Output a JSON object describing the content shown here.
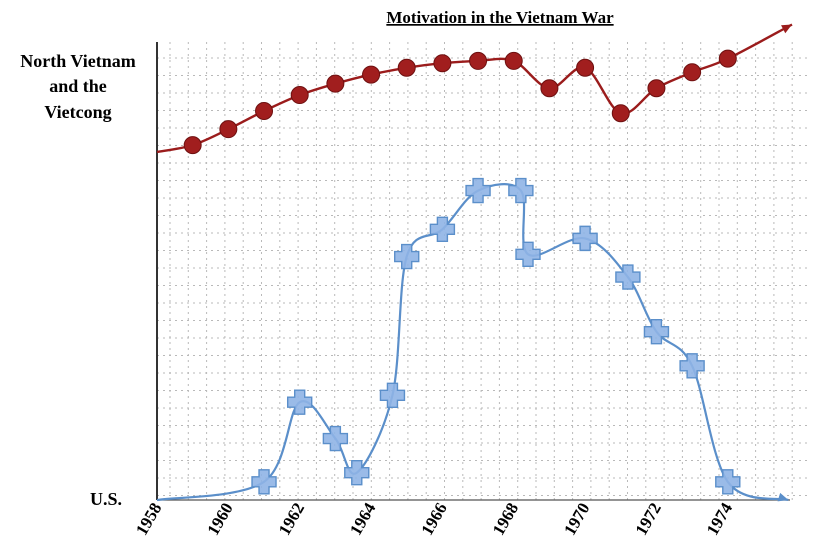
{
  "chart_data": {
    "type": "line",
    "title": "Motivation in the Vietnam War",
    "ylabels": {
      "top_lines": [
        "North Vietnam",
        "and the",
        "Vietcong"
      ],
      "bottom": "U.S."
    },
    "x_ticks": [
      "1958",
      "1960",
      "1962",
      "1964",
      "1966",
      "1968",
      "1970",
      "1972",
      "1974"
    ],
    "xlim": [
      1958,
      1975.8
    ],
    "ylim": [
      0,
      100
    ],
    "grid": true,
    "colors": {
      "nv": "#9b1c1c",
      "nv_marker": "#a11e1e",
      "us": "#5b8fca",
      "us_marker": "#8fb4e6",
      "grid": "#b9b9b9"
    },
    "series": [
      {
        "key": "nv",
        "marker": "circle",
        "line_start": [
          1958,
          76.5
        ],
        "line_end": [
          1975.8,
          104.5
        ],
        "points": [
          [
            1959,
            78
          ],
          [
            1960,
            81.5
          ],
          [
            1961,
            85.5
          ],
          [
            1962,
            89
          ],
          [
            1963,
            91.5
          ],
          [
            1964,
            93.5
          ],
          [
            1965,
            95
          ],
          [
            1966,
            96
          ],
          [
            1967,
            96.5
          ],
          [
            1968,
            96.5
          ],
          [
            1969,
            90.5
          ],
          [
            1970,
            95
          ],
          [
            1971,
            85
          ],
          [
            1972,
            90.5
          ],
          [
            1973,
            94
          ],
          [
            1974,
            97
          ]
        ]
      },
      {
        "key": "us",
        "marker": "plus",
        "line_start": [
          1958,
          0
        ],
        "line_end": [
          1975.7,
          0
        ],
        "points": [
          [
            1961,
            4
          ],
          [
            1962,
            21.5
          ],
          [
            1963,
            13.5
          ],
          [
            1963.6,
            6
          ],
          [
            1964.6,
            23
          ],
          [
            1965,
            53.5
          ],
          [
            1966,
            59.5
          ],
          [
            1967,
            68
          ],
          [
            1968.2,
            68
          ],
          [
            1968.4,
            54
          ],
          [
            1970,
            57.5
          ],
          [
            1971.2,
            49
          ],
          [
            1972,
            37
          ],
          [
            1973,
            29.5
          ],
          [
            1974,
            4
          ]
        ]
      }
    ]
  }
}
